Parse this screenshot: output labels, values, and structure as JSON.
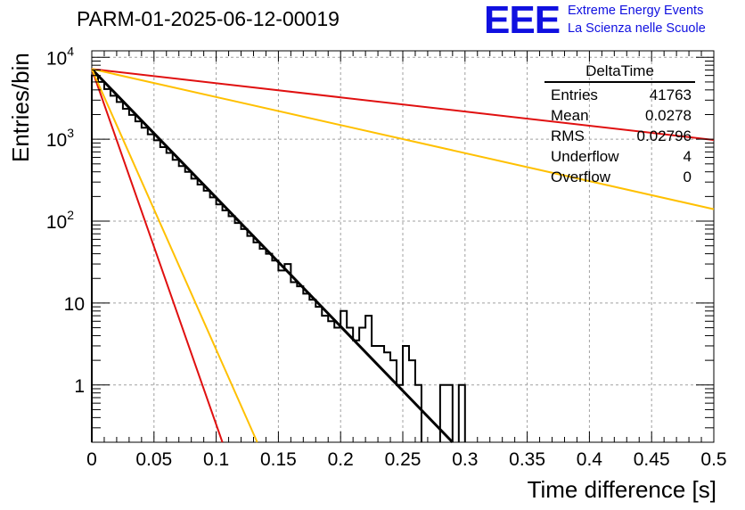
{
  "title": "PARM-01-2025-06-12-00019",
  "logo": {
    "mark": "EEE",
    "line1": "Extreme Energy Events",
    "line2": "La Scienza nelle Scuole",
    "color": "#1010e0"
  },
  "stats": {
    "title": "DeltaTime",
    "rows": [
      {
        "label": "Entries",
        "value": "41763"
      },
      {
        "label": "Mean",
        "value": "0.0278"
      },
      {
        "label": "RMS",
        "value": "0.02796"
      },
      {
        "label": "Underflow",
        "value": "4"
      },
      {
        "label": "Overflow",
        "value": "0"
      }
    ]
  },
  "chart_data": {
    "type": "line",
    "xlabel": "Time difference [s]",
    "ylabel": "Entries/bin",
    "xlim": [
      0,
      0.5
    ],
    "ylim": [
      0.2,
      12000
    ],
    "ylog": true,
    "grid": true,
    "x_ticks": [
      "0",
      "0.05",
      "0.1",
      "0.15",
      "0.2",
      "0.25",
      "0.3",
      "0.35",
      "0.4",
      "0.45",
      "0.5"
    ],
    "y_ticks": [
      {
        "value": 1,
        "label": "1"
      },
      {
        "value": 10,
        "label": "10"
      },
      {
        "value": 100,
        "label": "10^2"
      },
      {
        "value": 1000,
        "label": "10^3"
      },
      {
        "value": 10000,
        "label": "10^4"
      }
    ],
    "histogram": {
      "bin_width": 0.005,
      "values": [
        6000,
        5000,
        4100,
        3400,
        2850,
        2350,
        1980,
        1650,
        1380,
        1150,
        970,
        800,
        680,
        560,
        470,
        400,
        330,
        280,
        235,
        195,
        160,
        135,
        115,
        95,
        80,
        66,
        55,
        46,
        40,
        33,
        25,
        30,
        18,
        16,
        13,
        11,
        9,
        7,
        6,
        5,
        8,
        5,
        3.5,
        5,
        7,
        3,
        3,
        2.5,
        2,
        1,
        3,
        2,
        1,
        0,
        0,
        0,
        1,
        1,
        0,
        1,
        0
      ]
    },
    "series": [
      {
        "x": [
          0,
          0.29
        ],
        "y": [
          7200,
          0.2
        ],
        "color": "#000000"
      },
      {
        "x": [
          0,
          0.5
        ],
        "y": [
          7200,
          980
        ],
        "color": "#e01010"
      },
      {
        "x": [
          0,
          0.5
        ],
        "y": [
          7200,
          140
        ],
        "color": "#ffc000"
      },
      {
        "x": [
          0,
          0.105
        ],
        "y": [
          7200,
          0.2
        ],
        "color": "#e01010"
      },
      {
        "x": [
          0,
          0.133
        ],
        "y": [
          7200,
          0.2
        ],
        "color": "#ffc000"
      }
    ]
  }
}
